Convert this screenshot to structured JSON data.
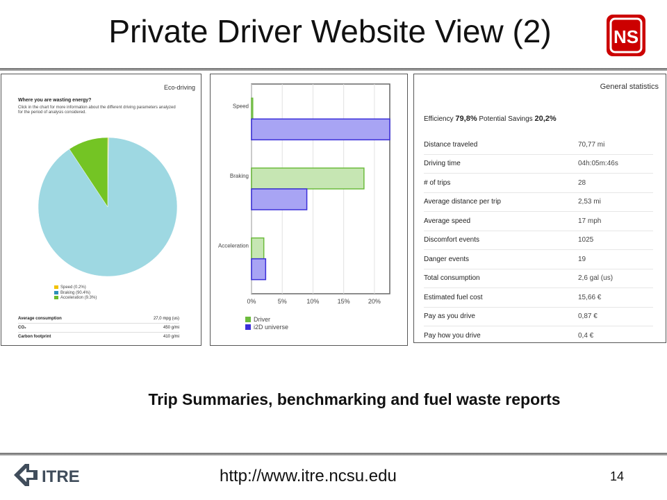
{
  "slide": {
    "title": "Private Driver Website View (2)",
    "subtitle": "Trip Summaries, benchmarking and fuel waste reports",
    "url": "http://www.itre.ncsu.edu",
    "page_number": "14",
    "itre_logo_text": "ITRE",
    "ns_logo_text": "NS"
  },
  "eco_panel": {
    "tag": "Eco-driving",
    "question": "Where you are wasting energy?",
    "description": "Click in the chart for more information about the different driving parameters analyzed for the period of analysis considered.",
    "legend": [
      {
        "label": "Speed (0.2%)",
        "color": "#f2c200"
      },
      {
        "label": "Braking (90.4%)",
        "color": "#2c8fb8"
      },
      {
        "label": "Acceleration (9.3%)",
        "color": "#6cbb2a"
      }
    ],
    "stats": [
      {
        "label": "Average consumption",
        "value": "27,0 mpg (us)"
      },
      {
        "label": "CO₂",
        "value": "450 g/mi"
      },
      {
        "label": "Carbon footprint",
        "value": "410 g/mi"
      }
    ]
  },
  "chart_data": [
    {
      "type": "pie",
      "categories": [
        "Speed",
        "Braking",
        "Acceleration"
      ],
      "values": [
        0.2,
        90.4,
        9.3
      ],
      "colors": [
        "#f2c200",
        "#9ed8e2",
        "#74c424"
      ],
      "legend_position": "bottom-left"
    },
    {
      "type": "bar",
      "orientation": "horizontal",
      "categories": [
        "Speed",
        "Braking",
        "Acceleration"
      ],
      "series": [
        {
          "name": "Driver",
          "values": [
            0.2,
            18.3,
            2.0
          ],
          "color": "#6cbb3c",
          "fill": "#c6e6b3"
        },
        {
          "name": "i2D universe",
          "values": [
            22.5,
            9.0,
            2.3
          ],
          "color": "#3b2ed9",
          "fill": "#a8a4f4"
        }
      ],
      "xlim": [
        0,
        22.5
      ],
      "xticks": [
        "0%",
        "5%",
        "10%",
        "15%",
        "20%"
      ],
      "xtick_values": [
        0,
        5,
        10,
        15,
        20
      ],
      "legend_position": "bottom-left"
    }
  ],
  "general_stats": {
    "title": "General statistics",
    "efficiency_label": "Efficiency",
    "efficiency_value": "79,8%",
    "savings_label": "Potential Savings",
    "savings_value": "20,2%",
    "rows": [
      {
        "label": "Distance traveled",
        "value": "70,77 mi"
      },
      {
        "label": "Driving time",
        "value": "04h:05m:46s"
      },
      {
        "label": "# of trips",
        "value": "28"
      },
      {
        "label": "Average distance per trip",
        "value": "2,53 mi"
      },
      {
        "label": "Average speed",
        "value": "17 mph"
      },
      {
        "label": "Discomfort events",
        "value": "1025"
      },
      {
        "label": "Danger events",
        "value": "19"
      },
      {
        "label": "Total consumption",
        "value": "2,6 gal (us)"
      },
      {
        "label": "Estimated fuel cost",
        "value": "15,66 €"
      },
      {
        "label": "Pay as you drive",
        "value": "0,87 €"
      },
      {
        "label": "Pay how you drive",
        "value": "0,4 €"
      }
    ]
  }
}
